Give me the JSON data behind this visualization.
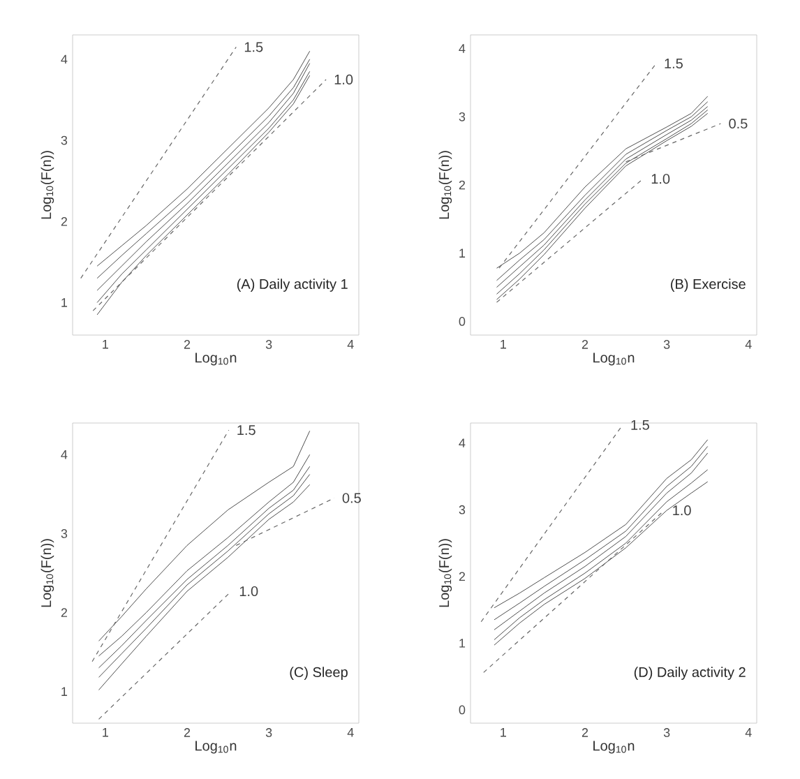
{
  "chart_data": [
    {
      "type": "line",
      "title": "(A) Daily activity 1",
      "xlabel": "Log$_{10}$n",
      "ylabel": "Log$_{10}$(F(n))",
      "xlim": [
        0.6,
        4.1
      ],
      "xticks": [
        1,
        2,
        3,
        4
      ],
      "ylim": [
        0.6,
        4.3
      ],
      "yticks": [
        1,
        2,
        3,
        4
      ],
      "grid": false,
      "marker": "none",
      "x": [
        0.9,
        1.2,
        1.5,
        2.0,
        2.5,
        3.0,
        3.3,
        3.5
      ],
      "series": [
        {
          "color": "#222222",
          "values": [
            1.45,
            1.7,
            1.95,
            2.4,
            2.9,
            3.4,
            3.75,
            4.1
          ]
        },
        {
          "color": "#222222",
          "values": [
            1.3,
            1.58,
            1.85,
            2.3,
            2.8,
            3.3,
            3.65,
            4.0
          ]
        },
        {
          "color": "#222222",
          "values": [
            1.15,
            1.45,
            1.75,
            2.22,
            2.72,
            3.22,
            3.58,
            3.95
          ]
        },
        {
          "color": "#222222",
          "values": [
            1.0,
            1.35,
            1.65,
            2.15,
            2.65,
            3.15,
            3.5,
            3.85
          ]
        },
        {
          "color": "#222222",
          "values": [
            0.85,
            1.25,
            1.58,
            2.08,
            2.58,
            3.1,
            3.45,
            3.8
          ]
        },
        {
          "name": "1.5",
          "color": "#666666",
          "line_style": "dashed",
          "x": [
            0.7,
            2.6
          ],
          "values": [
            1.3,
            4.15
          ]
        },
        {
          "name": "1.0",
          "color": "#666666",
          "line_style": "dashed",
          "x": [
            0.85,
            3.7
          ],
          "values": [
            0.9,
            3.75
          ]
        }
      ]
    },
    {
      "type": "line",
      "title": "(B) Exercise",
      "xlabel": "Log$_{10}$n",
      "ylabel": "Log$_{10}$(F(n))",
      "xlim": [
        0.6,
        4.1
      ],
      "xticks": [
        1,
        2,
        3,
        4
      ],
      "ylim": [
        -0.2,
        4.2
      ],
      "yticks": [
        0,
        1,
        2,
        3,
        4
      ],
      "grid": false,
      "marker": "none",
      "x": [
        0.92,
        1.2,
        1.5,
        2.0,
        2.5,
        3.0,
        3.3,
        3.5
      ],
      "series": [
        {
          "color": "#222222",
          "values": [
            0.78,
            1.0,
            1.3,
            1.97,
            2.53,
            2.85,
            3.05,
            3.3
          ]
        },
        {
          "color": "#222222",
          "values": [
            0.6,
            0.9,
            1.2,
            1.85,
            2.45,
            2.8,
            3.0,
            3.22
          ]
        },
        {
          "color": "#222222",
          "values": [
            0.5,
            0.8,
            1.12,
            1.78,
            2.38,
            2.74,
            2.95,
            3.15
          ]
        },
        {
          "color": "#222222",
          "values": [
            0.4,
            0.7,
            1.05,
            1.72,
            2.32,
            2.68,
            2.9,
            3.1
          ]
        },
        {
          "color": "#222222",
          "values": [
            0.32,
            0.62,
            0.98,
            1.66,
            2.28,
            2.65,
            2.86,
            3.05
          ]
        },
        {
          "name": "1.5",
          "color": "#666666",
          "line_style": "dashed",
          "x": [
            0.95,
            2.87
          ],
          "values": [
            0.78,
            3.78
          ]
        },
        {
          "name": "1.0",
          "color": "#666666",
          "line_style": "dashed",
          "x": [
            0.92,
            2.71
          ],
          "values": [
            0.28,
            2.09
          ]
        },
        {
          "name": "0.5",
          "color": "#666666",
          "line_style": "dashed",
          "x": [
            2.5,
            3.66
          ],
          "values": [
            2.34,
            2.9
          ]
        }
      ]
    },
    {
      "type": "line",
      "title": "(C) Sleep",
      "xlabel": "Log$_{10}$n",
      "ylabel": "Log$_{10}$(F(n))",
      "xlim": [
        0.6,
        4.1
      ],
      "xticks": [
        1,
        2,
        3,
        4
      ],
      "ylim": [
        0.6,
        4.4
      ],
      "yticks": [
        1,
        2,
        3,
        4
      ],
      "grid": false,
      "marker": "none",
      "x": [
        0.92,
        1.2,
        1.5,
        2.0,
        2.5,
        3.0,
        3.3,
        3.5
      ],
      "series": [
        {
          "color": "#222222",
          "values": [
            1.64,
            1.95,
            2.3,
            2.85,
            3.3,
            3.65,
            3.85,
            4.3
          ]
        },
        {
          "color": "#222222",
          "values": [
            1.45,
            1.7,
            2.0,
            2.53,
            2.95,
            3.4,
            3.65,
            4.0
          ]
        },
        {
          "color": "#222222",
          "values": [
            1.3,
            1.58,
            1.9,
            2.42,
            2.85,
            3.32,
            3.55,
            3.85
          ]
        },
        {
          "color": "#222222",
          "values": [
            1.18,
            1.48,
            1.8,
            2.35,
            2.78,
            3.25,
            3.48,
            3.75
          ]
        },
        {
          "color": "#222222",
          "values": [
            1.02,
            1.35,
            1.7,
            2.27,
            2.7,
            3.18,
            3.4,
            3.62
          ]
        },
        {
          "name": "1.5",
          "color": "#666666",
          "line_style": "dashed",
          "x": [
            0.84,
            2.51
          ],
          "values": [
            1.38,
            4.31
          ]
        },
        {
          "name": "1.0",
          "color": "#666666",
          "line_style": "dashed",
          "x": [
            0.92,
            2.54
          ],
          "values": [
            0.65,
            2.27
          ]
        },
        {
          "name": "0.5",
          "color": "#666666",
          "line_style": "dashed",
          "x": [
            2.6,
            3.8
          ],
          "values": [
            2.85,
            3.45
          ]
        }
      ]
    },
    {
      "type": "line",
      "title": "(D) Daily activity 2",
      "xlabel": "Log$_{10}$n",
      "ylabel": "Log$_{10}$(F(n))",
      "xlim": [
        0.6,
        4.1
      ],
      "xticks": [
        1,
        2,
        3,
        4
      ],
      "ylim": [
        -0.2,
        4.3
      ],
      "yticks": [
        0,
        1,
        2,
        3,
        4
      ],
      "grid": false,
      "marker": "none",
      "x": [
        0.89,
        1.2,
        1.5,
        2.0,
        2.5,
        3.0,
        3.3,
        3.5
      ],
      "series": [
        {
          "color": "#222222",
          "values": [
            1.53,
            1.75,
            1.98,
            2.36,
            2.78,
            3.47,
            3.75,
            4.05
          ]
        },
        {
          "color": "#222222",
          "values": [
            1.35,
            1.6,
            1.85,
            2.25,
            2.68,
            3.35,
            3.65,
            3.95
          ]
        },
        {
          "color": "#222222",
          "values": [
            1.2,
            1.48,
            1.75,
            2.15,
            2.6,
            3.25,
            3.55,
            3.85
          ]
        },
        {
          "color": "#222222",
          "values": [
            1.05,
            1.38,
            1.65,
            2.05,
            2.5,
            3.12,
            3.4,
            3.6
          ]
        },
        {
          "color": "#222222",
          "values": [
            0.97,
            1.3,
            1.58,
            1.97,
            2.43,
            2.99,
            3.25,
            3.42
          ]
        },
        {
          "name": "1.5",
          "color": "#666666",
          "line_style": "dashed",
          "x": [
            0.73,
            2.46
          ],
          "values": [
            1.32,
            4.27
          ]
        },
        {
          "name": "1.0",
          "color": "#666666",
          "line_style": "dashed",
          "x": [
            0.76,
            2.97
          ],
          "values": [
            0.56,
            2.99
          ]
        }
      ]
    }
  ]
}
